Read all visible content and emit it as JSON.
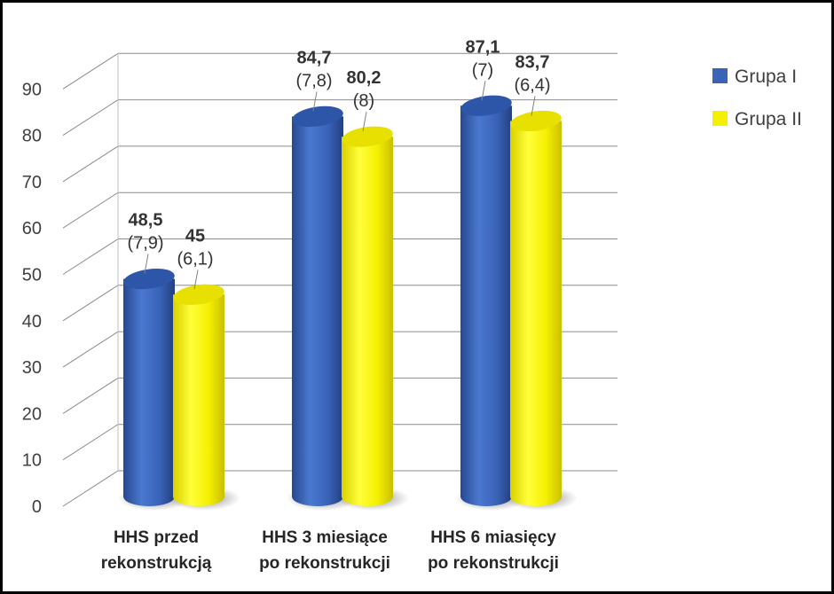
{
  "chart_data": {
    "type": "bar",
    "title": "",
    "xlabel": "",
    "ylabel": "",
    "ylim": [
      0,
      90
    ],
    "yticks": [
      0,
      10,
      20,
      30,
      40,
      50,
      60,
      70,
      80,
      90
    ],
    "grid": true,
    "legend_position": "top-right",
    "categories": [
      [
        "HHS przed",
        "rekonstrukcją"
      ],
      [
        "HHS 3 miesiące",
        "po rekonstrukcji"
      ],
      [
        "HHS 6 miasięcy",
        "po rekonstrukcji"
      ]
    ],
    "series": [
      {
        "name": "Grupa I",
        "color": "#3a63b8",
        "values": [
          48.5,
          84.7,
          87.1
        ],
        "labels": [
          "48,5",
          "84,7",
          "87,1"
        ],
        "sd_labels": [
          "(7,9)",
          "(7,8)",
          "(7)"
        ]
      },
      {
        "name": "Grupa II",
        "color": "#f5ef00",
        "values": [
          45,
          80.2,
          83.7
        ],
        "labels": [
          "45",
          "80,2",
          "83,7"
        ],
        "sd_labels": [
          "(6,1)",
          "(8)",
          "(6,4)"
        ]
      }
    ]
  }
}
